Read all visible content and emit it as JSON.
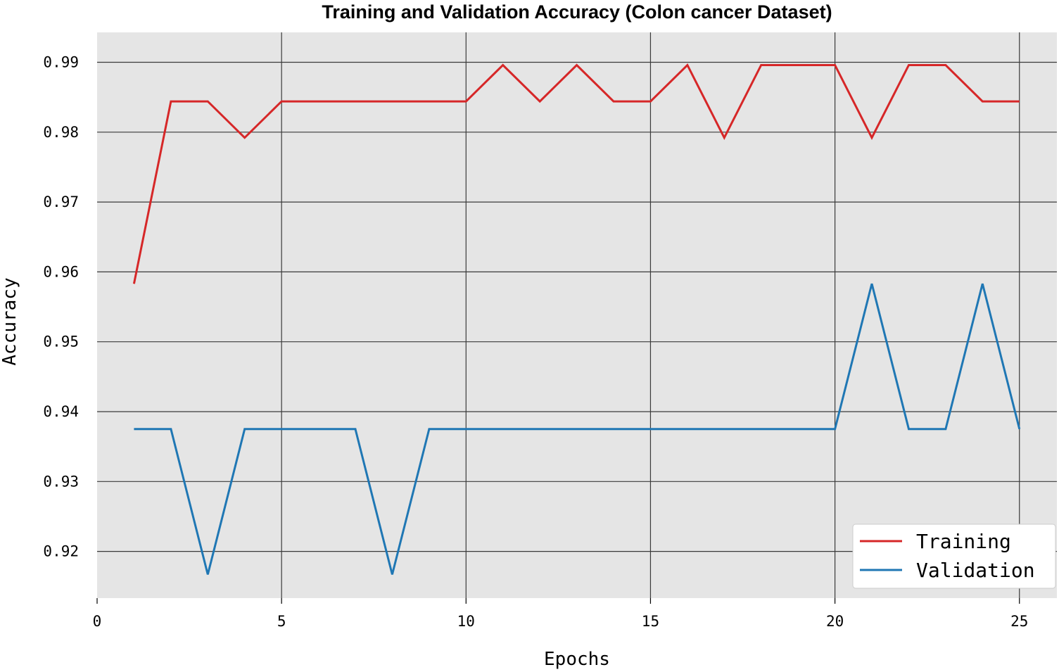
{
  "chart_data": {
    "type": "line",
    "title": "Training and Validation Accuracy (Colon cancer Dataset)",
    "xlabel": "Epochs",
    "ylabel": "Accuracy",
    "xlim": [
      0,
      26
    ],
    "ylim": [
      0.913,
      0.994
    ],
    "xticks": [
      0,
      5,
      10,
      15,
      20,
      25
    ],
    "xtick_labels": [
      "0",
      "5",
      "10",
      "15",
      "20",
      "25"
    ],
    "yticks": [
      0.92,
      0.93,
      0.94,
      0.95,
      0.96,
      0.97,
      0.98,
      0.99
    ],
    "ytick_labels": [
      "0.92",
      "0.93",
      "0.94",
      "0.95",
      "0.96",
      "0.97",
      "0.98",
      "0.99"
    ],
    "grid": true,
    "background": "#e5e5e5",
    "legend_position": "lower right",
    "x": [
      1,
      2,
      3,
      4,
      5,
      6,
      7,
      8,
      9,
      10,
      11,
      12,
      13,
      14,
      15,
      16,
      17,
      18,
      19,
      20,
      21,
      22,
      23,
      24,
      25
    ],
    "series": [
      {
        "name": "Training",
        "color": "#d62728",
        "values": [
          0.9583,
          0.9844,
          0.9844,
          0.9792,
          0.9844,
          0.9844,
          0.9844,
          0.9844,
          0.9844,
          0.9844,
          0.9896,
          0.9844,
          0.9896,
          0.9844,
          0.9844,
          0.9896,
          0.9792,
          0.9896,
          0.9896,
          0.9896,
          0.9792,
          0.9896,
          0.9896,
          0.9844,
          0.9844
        ]
      },
      {
        "name": "Validation",
        "color": "#1f77b4",
        "values": [
          0.9375,
          0.9375,
          0.9167,
          0.9375,
          0.9375,
          0.9375,
          0.9375,
          0.9167,
          0.9375,
          0.9375,
          0.9375,
          0.9375,
          0.9375,
          0.9375,
          0.9375,
          0.9375,
          0.9375,
          0.9375,
          0.9375,
          0.9375,
          0.9583,
          0.9375,
          0.9375,
          0.9583,
          0.9375
        ]
      }
    ]
  }
}
